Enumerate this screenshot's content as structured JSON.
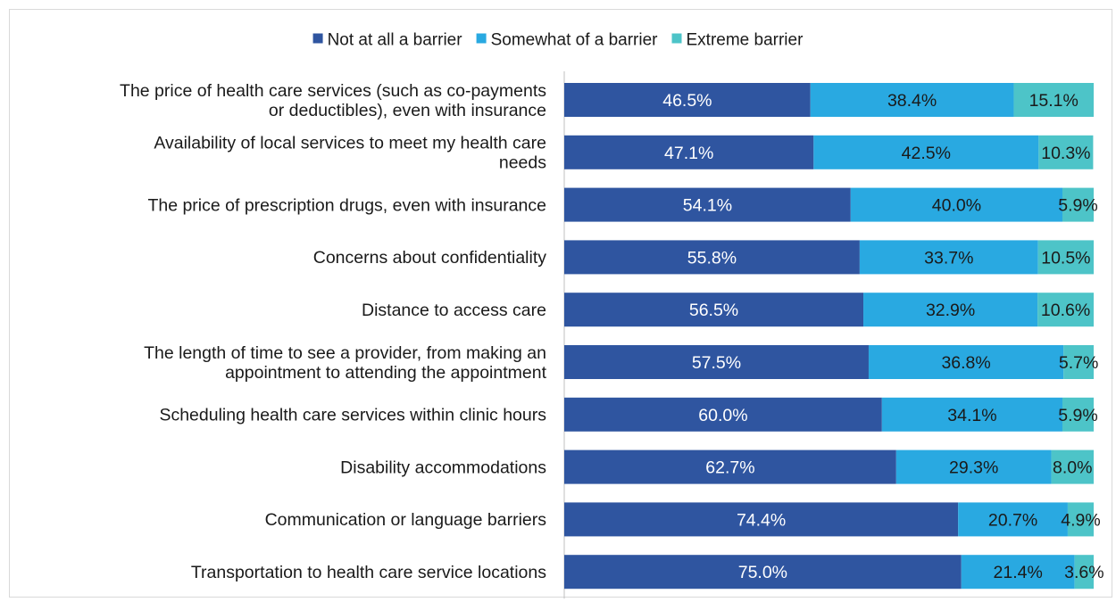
{
  "chart_data": {
    "type": "bar",
    "orientation": "horizontal",
    "stacked": true,
    "legend_position": "top",
    "grid": false,
    "xlim": [
      0,
      100
    ],
    "title": "",
    "xlabel": "",
    "ylabel": "",
    "categories": [
      "The price of health care services (such as co-payments or deductibles), even with insurance",
      "Availability of local services to meet my health care needs",
      "The price of prescription drugs, even with insurance",
      "Concerns about confidentiality",
      "Distance to access care",
      "The length of time to see a provider, from making an appointment to attending the appointment",
      "Scheduling health care services within clinic hours",
      "Disability accommodations",
      "Communication or language barriers",
      "Transportation to health care service locations"
    ],
    "category_lines": [
      [
        "The price of health care services (such as co-payments",
        "or deductibles), even with insurance"
      ],
      [
        "Availability of local services to meet my health care",
        "needs"
      ],
      [
        "The price of prescription drugs, even with insurance"
      ],
      [
        "Concerns about confidentiality"
      ],
      [
        "Distance to access care"
      ],
      [
        "The length of time to see a provider, from making an",
        "appointment to attending the appointment"
      ],
      [
        "Scheduling health care services within clinic hours"
      ],
      [
        "Disability accommodations"
      ],
      [
        "Communication or language barriers"
      ],
      [
        "Transportation to health care service locations"
      ]
    ],
    "series": [
      {
        "name": "Not at all a barrier",
        "color": "#2F55A0",
        "label_color": "#ffffff",
        "values": [
          46.5,
          47.1,
          54.1,
          55.8,
          56.5,
          57.5,
          60.0,
          62.7,
          74.4,
          75.0
        ],
        "labels": [
          "46.5%",
          "47.1%",
          "54.1%",
          "55.8%",
          "56.5%",
          "57.5%",
          "60.0%",
          "62.7%",
          "74.4%",
          "75.0%"
        ]
      },
      {
        "name": "Somewhat of a barrier",
        "color": "#29A9E1",
        "label_color": "#1a1a1a",
        "values": [
          38.4,
          42.5,
          40.0,
          33.7,
          32.9,
          36.8,
          34.1,
          29.3,
          20.7,
          21.4
        ],
        "labels": [
          "38.4%",
          "42.5%",
          "40.0%",
          "33.7%",
          "32.9%",
          "36.8%",
          "34.1%",
          "29.3%",
          "20.7%",
          "21.4%"
        ]
      },
      {
        "name": "Extreme barrier",
        "color": "#4DC4C8",
        "label_color": "#1a1a1a",
        "values": [
          15.1,
          10.3,
          5.9,
          10.5,
          10.6,
          5.7,
          5.9,
          8.0,
          4.9,
          3.6
        ],
        "labels": [
          "15.1%",
          "10.3%",
          "5.9%",
          "10.5%",
          "10.6%",
          "5.7%",
          "5.9%",
          "8.0%",
          "4.9%",
          "3.6%"
        ]
      }
    ]
  }
}
